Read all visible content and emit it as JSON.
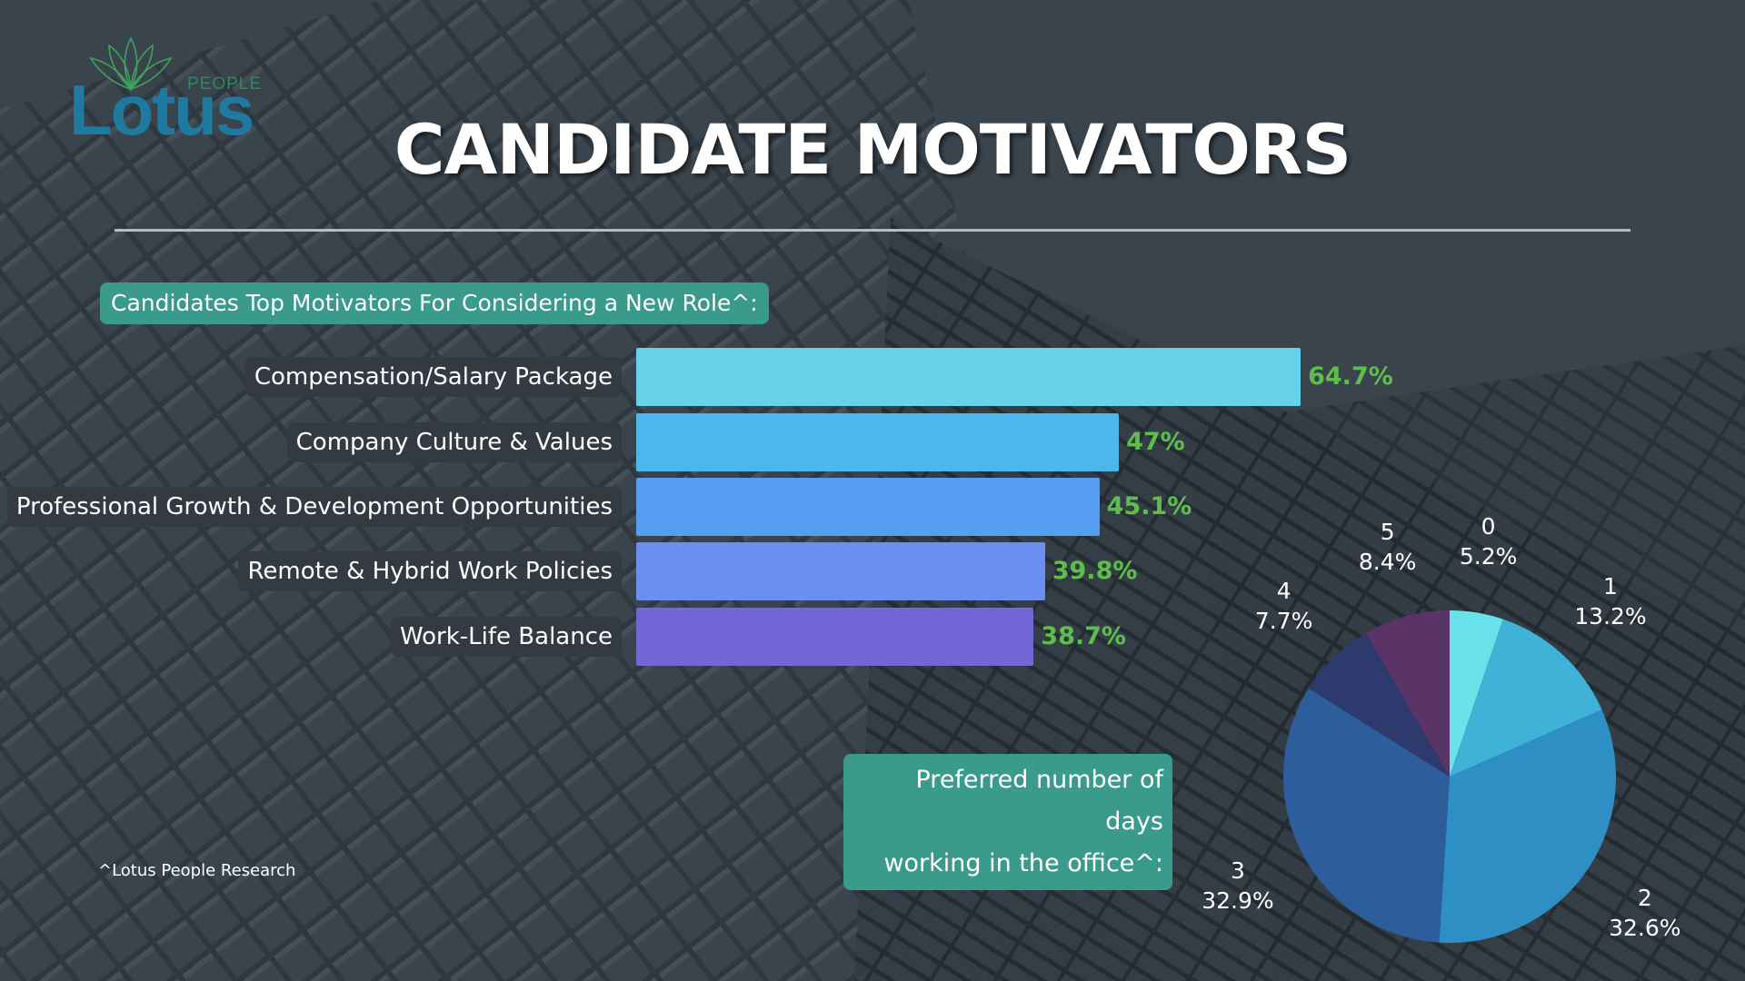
{
  "logo": {
    "word": "Lotus",
    "sub": "PEOPLE"
  },
  "title": "CANDIDATE MOTIVATORS",
  "bar_heading": "Candidates Top Motivators For Considering a New Role^:",
  "pie_heading_line1": "Preferred number of days",
  "pie_heading_line2": "working in the office^:",
  "footnote": "^Lotus People Research",
  "chart_data": [
    {
      "type": "bar",
      "orientation": "horizontal",
      "categories": [
        "Compensation/Salary Package",
        "Company Culture & Values",
        "Professional Growth & Development Opportunities",
        "Remote & Hybrid Work Policies",
        "Work-Life Balance"
      ],
      "values": [
        64.7,
        47,
        45.1,
        39.8,
        38.7
      ],
      "value_labels": [
        "64.7%",
        "47%",
        "45.1%",
        "39.8%",
        "38.7%"
      ],
      "colors": [
        "#67d3ea",
        "#4db7ec",
        "#559ef1",
        "#6b8ef0",
        "#7566d8"
      ],
      "value_label_color": "#5fbd4c"
    },
    {
      "type": "pie",
      "categories": [
        "0",
        "1",
        "2",
        "3",
        "4",
        "5"
      ],
      "values": [
        5.2,
        13.2,
        32.6,
        32.9,
        7.7,
        8.4
      ],
      "value_labels": [
        "5.2%",
        "13.2%",
        "32.6%",
        "32.9%",
        "7.7%",
        "8.4%"
      ],
      "colors": [
        "#69e2ea",
        "#3eb2d7",
        "#2e8fc4",
        "#2e5d9b",
        "#2c3a6e",
        "#5a3466"
      ]
    }
  ]
}
